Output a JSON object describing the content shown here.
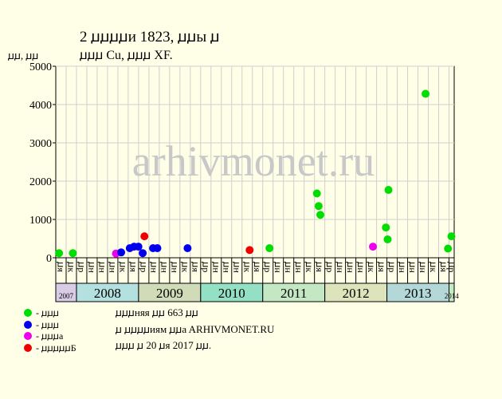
{
  "header": {
    "title_line1": "2 ꙡꙡꙡꙡи 1823, ꙡꙡы ꙡ",
    "title_line2": "ꙡꙡꙡ Cu, ꙡꙡꙡ XF.",
    "y_unit": "ꙡꙡ, ꙡꙡ"
  },
  "watermark": "arhivmonet.ru",
  "legend": [
    {
      "label": "- ꙡꙡꙡ",
      "color": "#00dd00"
    },
    {
      "label": "- ꙡꙡꙡ",
      "color": "#0000ee"
    },
    {
      "label": "- ꙡꙡꙡa",
      "color": "#ee00ee"
    },
    {
      "label": "- ꙡꙡꙡꙡꙡБ",
      "color": "#ee0000"
    }
  ],
  "info": {
    "line1": "ꙡꙡꙡняя ꙡꙡ 663 ꙡꙡ",
    "line2": "ꙡ ꙡꙡꙡꙡиям ꙡꙡa ARHIVMONET.RU",
    "line3": "ꙡꙡꙡ ꙡ 20 ꙡя 2017 ꙡꙡ."
  },
  "chart_data": {
    "type": "scatter",
    "ylim": [
      0,
      5000
    ],
    "yticks": [
      0,
      1000,
      2000,
      3000,
      4000,
      5000
    ],
    "grid": true,
    "x_units": "months",
    "xlim": [
      "2007-09",
      "2014-02"
    ],
    "x_tick_labels": [
      {
        "month": "2007-09",
        "label": "ꙡя"
      },
      {
        "month": "2007-11",
        "label": "ꙡк"
      },
      {
        "month": "2008-01",
        "label": "ꙡр"
      },
      {
        "month": "2008-03",
        "label": "ꙡн"
      },
      {
        "month": "2008-05",
        "label": "ꙡн"
      },
      {
        "month": "2008-07",
        "label": "ꙡн"
      },
      {
        "month": "2008-09",
        "label": "ꙡк"
      },
      {
        "month": "2008-11",
        "label": "ꙡя"
      },
      {
        "month": "2009-01",
        "label": "ꙡр"
      },
      {
        "month": "2009-03",
        "label": "ꙡн"
      },
      {
        "month": "2009-05",
        "label": "ꙡн"
      },
      {
        "month": "2009-07",
        "label": "ꙡн"
      },
      {
        "month": "2009-09",
        "label": "ꙡк"
      },
      {
        "month": "2009-11",
        "label": "ꙡя"
      },
      {
        "month": "2010-01",
        "label": "ꙡр"
      },
      {
        "month": "2010-03",
        "label": "ꙡн"
      },
      {
        "month": "2010-05",
        "label": "ꙡн"
      },
      {
        "month": "2010-07",
        "label": "ꙡн"
      },
      {
        "month": "2010-09",
        "label": "ꙡк"
      },
      {
        "month": "2010-11",
        "label": "ꙡя"
      },
      {
        "month": "2011-01",
        "label": "ꙡр"
      },
      {
        "month": "2011-03",
        "label": "ꙡн"
      },
      {
        "month": "2011-05",
        "label": "ꙡн"
      },
      {
        "month": "2011-07",
        "label": "ꙡн"
      },
      {
        "month": "2011-09",
        "label": "ꙡк"
      },
      {
        "month": "2011-11",
        "label": "ꙡя"
      },
      {
        "month": "2012-01",
        "label": "ꙡр"
      },
      {
        "month": "2012-03",
        "label": "ꙡн"
      },
      {
        "month": "2012-05",
        "label": "ꙡн"
      },
      {
        "month": "2012-07",
        "label": "ꙡн"
      },
      {
        "month": "2012-09",
        "label": "ꙡк"
      },
      {
        "month": "2012-11",
        "label": "ꙡя"
      },
      {
        "month": "2013-01",
        "label": "ꙡр"
      },
      {
        "month": "2013-03",
        "label": "ꙡн"
      },
      {
        "month": "2013-05",
        "label": "ꙡн"
      },
      {
        "month": "2013-07",
        "label": "ꙡн"
      },
      {
        "month": "2013-09",
        "label": "ꙡк"
      },
      {
        "month": "2013-11",
        "label": "ꙡя"
      },
      {
        "month": "2014-01",
        "label": "ꙡр"
      }
    ],
    "years": [
      {
        "label": "2007",
        "start": "2007-09",
        "end": "2008-01",
        "color": "#d8cce6"
      },
      {
        "label": "2008",
        "start": "2008-01",
        "end": "2009-01",
        "color": "#b4e0e0"
      },
      {
        "label": "2009",
        "start": "2009-01",
        "end": "2010-01",
        "color": "#d0dbb8"
      },
      {
        "label": "2010",
        "start": "2010-01",
        "end": "2011-01",
        "color": "#94e0c4"
      },
      {
        "label": "2011",
        "start": "2011-01",
        "end": "2012-01",
        "color": "#c4e8c4"
      },
      {
        "label": "2012",
        "start": "2012-01",
        "end": "2013-01",
        "color": "#dde4bc"
      },
      {
        "label": "2013",
        "start": "2013-01",
        "end": "2014-01",
        "color": "#b4d8d8"
      },
      {
        "label": "2014",
        "start": "2014-01",
        "end": "2014-02",
        "color": "#c4ecc4"
      }
    ],
    "points": [
      {
        "date": "2007-09-20",
        "value": 120,
        "color": "#00dd00"
      },
      {
        "date": "2007-12-10",
        "value": 120,
        "color": "#00dd00"
      },
      {
        "date": "2008-08-20",
        "value": 110,
        "color": "#ee00ee"
      },
      {
        "date": "2008-09-20",
        "value": 140,
        "color": "#0000ee"
      },
      {
        "date": "2008-11-10",
        "value": 250,
        "color": "#0000ee"
      },
      {
        "date": "2008-12-05",
        "value": 290,
        "color": "#0000ee"
      },
      {
        "date": "2008-12-30",
        "value": 290,
        "color": "#0000ee"
      },
      {
        "date": "2009-01-25",
        "value": 120,
        "color": "#0000ee"
      },
      {
        "date": "2009-02-05",
        "value": 560,
        "color": "#ee0000"
      },
      {
        "date": "2009-03-25",
        "value": 250,
        "color": "#0000ee"
      },
      {
        "date": "2009-04-20",
        "value": 250,
        "color": "#0000ee"
      },
      {
        "date": "2009-10-15",
        "value": 250,
        "color": "#0000ee"
      },
      {
        "date": "2010-10-15",
        "value": 200,
        "color": "#ee0000"
      },
      {
        "date": "2011-02-10",
        "value": 250,
        "color": "#00dd00"
      },
      {
        "date": "2011-11-15",
        "value": 1680,
        "color": "#00dd00"
      },
      {
        "date": "2011-11-25",
        "value": 1350,
        "color": "#00dd00"
      },
      {
        "date": "2011-12-05",
        "value": 1120,
        "color": "#00dd00"
      },
      {
        "date": "2012-10-10",
        "value": 290,
        "color": "#ee00ee"
      },
      {
        "date": "2012-12-25",
        "value": 790,
        "color": "#00dd00"
      },
      {
        "date": "2013-01-05",
        "value": 480,
        "color": "#00dd00"
      },
      {
        "date": "2013-01-10",
        "value": 1770,
        "color": "#00dd00"
      },
      {
        "date": "2013-08-15",
        "value": 4280,
        "color": "#00dd00"
      },
      {
        "date": "2013-12-25",
        "value": 240,
        "color": "#00dd00"
      },
      {
        "date": "2014-01-15",
        "value": 560,
        "color": "#00dd00"
      }
    ]
  }
}
